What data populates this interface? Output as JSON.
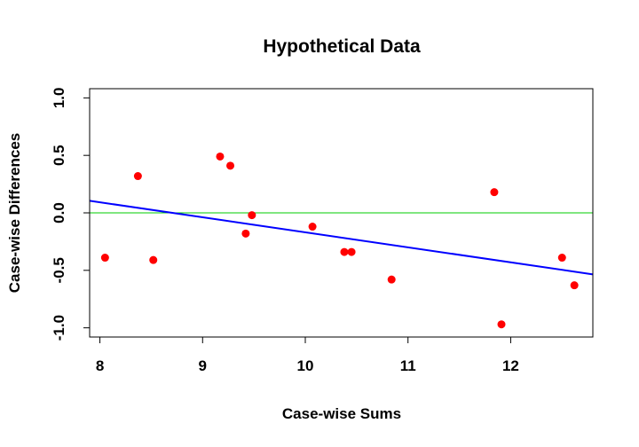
{
  "chart_data": {
    "type": "scatter",
    "title": "Hypothetical Data",
    "xlabel": "Case-wise Sums",
    "ylabel": "Case-wise Differences",
    "xlim": [
      7.9,
      12.8
    ],
    "ylim": [
      -1.08,
      1.08
    ],
    "xticks": [
      8,
      9,
      10,
      11,
      12
    ],
    "xtick_labels": [
      "8",
      "9",
      "10",
      "11",
      "12"
    ],
    "yticks": [
      -1.0,
      -0.5,
      0.0,
      0.5,
      1.0
    ],
    "ytick_labels": [
      "-1.0",
      "-0.5",
      "0.0",
      "0.5",
      "1.0"
    ],
    "grid": false,
    "points": {
      "color": "#ff0000",
      "x": [
        8.05,
        8.37,
        8.52,
        9.17,
        9.27,
        9.42,
        9.48,
        10.07,
        10.38,
        10.45,
        10.84,
        11.84,
        11.91,
        12.5,
        12.62
      ],
      "y": [
        -0.39,
        0.32,
        -0.41,
        0.49,
        0.41,
        -0.18,
        -0.02,
        -0.12,
        -0.34,
        -0.34,
        -0.58,
        0.18,
        -0.97,
        -0.39,
        -0.63
      ]
    },
    "reference_line": {
      "y": 0.0,
      "color": "#00cc00"
    },
    "fit_line": {
      "color": "#0000ff",
      "x": [
        7.9,
        12.8
      ],
      "y": [
        0.105,
        -0.535
      ]
    }
  }
}
